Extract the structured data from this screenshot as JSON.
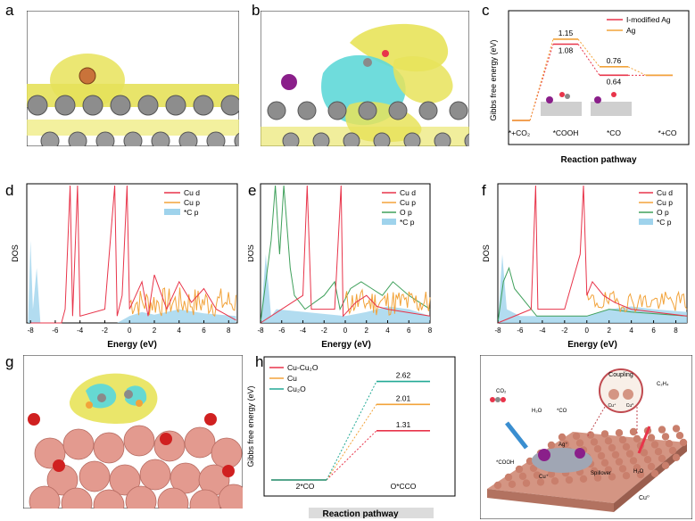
{
  "panel_letters": [
    "a",
    "b",
    "c",
    "d",
    "e",
    "f",
    "g",
    "h",
    "i"
  ],
  "colors": {
    "red": "#e8344a",
    "orange": "#f2a33a",
    "green": "#3fa05b",
    "blue_fill": "#9fd3ec",
    "teal": "#22a995",
    "gray_atom": "#8a8a8a",
    "cu_atom": "#e39a8f",
    "yellow_iso": "#e8e35a",
    "cyan_iso": "#5fd8d8",
    "purple_atom": "#8a1f8a"
  },
  "panel_c": {
    "ylabel": "Gibbs free energy (eV)",
    "xlabel": "Reaction pathway",
    "states": [
      "*+CO₂",
      "*COOH",
      "*CO",
      "*+CO"
    ],
    "legend": [
      "I-modified Ag",
      "Ag"
    ],
    "labels": [
      "1.15",
      "1.08",
      "0.76",
      "0.64"
    ]
  },
  "panel_d": {
    "ylabel": "DOS",
    "xlabel": "Energy (eV)",
    "ticks": [
      "-8",
      "-6",
      "-4",
      "-2",
      "0",
      "2",
      "4",
      "6",
      "8"
    ],
    "legend": [
      "Cu d",
      "Cu p",
      "*C p"
    ]
  },
  "panel_e": {
    "ylabel": "DOS",
    "xlabel": "Energy (eV)",
    "ticks": [
      "-8",
      "-6",
      "-4",
      "-2",
      "0",
      "2",
      "4",
      "6",
      "8"
    ],
    "legend": [
      "Cu d",
      "Cu p",
      "O p",
      "*C p"
    ]
  },
  "panel_f": {
    "ylabel": "DOS",
    "xlabel": "Energy (eV)",
    "ticks": [
      "-8",
      "-6",
      "-4",
      "-2",
      "0",
      "2",
      "4",
      "6",
      "8"
    ],
    "legend": [
      "Cu d",
      "Cu p",
      "O p",
      "*C p"
    ]
  },
  "panel_h": {
    "ylabel": "Gibbs free energy (eV)",
    "xlabel": "Reaction pathway",
    "states": [
      "2*CO",
      "O*CCO"
    ],
    "legend": [
      "Cu-Cu₂O",
      "Cu",
      "Cu₂O"
    ],
    "labels": [
      "2.62",
      "2.01",
      "1.31"
    ]
  },
  "panel_i": {
    "labels": {
      "coupling": "Coupling",
      "co2": "CO₂",
      "h2o": "H₂O",
      "co": "*CO",
      "cooh": "*COOH",
      "ag": "Ag⁺",
      "cu_plus": "Cu⁺",
      "spillover": "Spillover",
      "c2h4": "C₂H₄",
      "h2o_right": "H₂O",
      "cu0": "Cu⁰",
      "cu_plus_bubble": "Cu⁺",
      "cu0_bubble": "Cu⁰"
    }
  },
  "chart_data": [
    {
      "panel": "c",
      "type": "line",
      "ylabel": "Gibbs free energy (eV)",
      "xlabel": "Reaction pathway",
      "categories": [
        "*+CO₂",
        "*COOH",
        "*CO",
        "*+CO"
      ],
      "series": [
        {
          "name": "I-modified Ag",
          "values": [
            0,
            1.08,
            0.64,
            0.64
          ]
        },
        {
          "name": "Ag",
          "values": [
            0,
            1.15,
            0.76,
            0.64
          ]
        }
      ]
    },
    {
      "panel": "d",
      "type": "line",
      "xlabel": "Energy (eV)",
      "ylabel": "DOS",
      "xlim": [
        -8,
        9
      ],
      "series_names": [
        "Cu d",
        "Cu p",
        "*C p"
      ]
    },
    {
      "panel": "e",
      "type": "line",
      "xlabel": "Energy (eV)",
      "ylabel": "DOS",
      "xlim": [
        -8,
        8
      ],
      "series_names": [
        "Cu d",
        "Cu p",
        "O p",
        "*C p"
      ]
    },
    {
      "panel": "f",
      "type": "line",
      "xlabel": "Energy (eV)",
      "ylabel": "DOS",
      "xlim": [
        -8,
        9
      ],
      "series_names": [
        "Cu d",
        "Cu p",
        "O p",
        "*C p"
      ]
    },
    {
      "panel": "h",
      "type": "line",
      "ylabel": "Gibbs free energy (eV)",
      "xlabel": "Reaction pathway",
      "categories": [
        "2*CO",
        "O*CCO"
      ],
      "series": [
        {
          "name": "Cu-Cu₂O",
          "values": [
            0,
            1.31
          ]
        },
        {
          "name": "Cu",
          "values": [
            0,
            2.01
          ]
        },
        {
          "name": "Cu₂O",
          "values": [
            0,
            2.62
          ]
        }
      ]
    }
  ]
}
